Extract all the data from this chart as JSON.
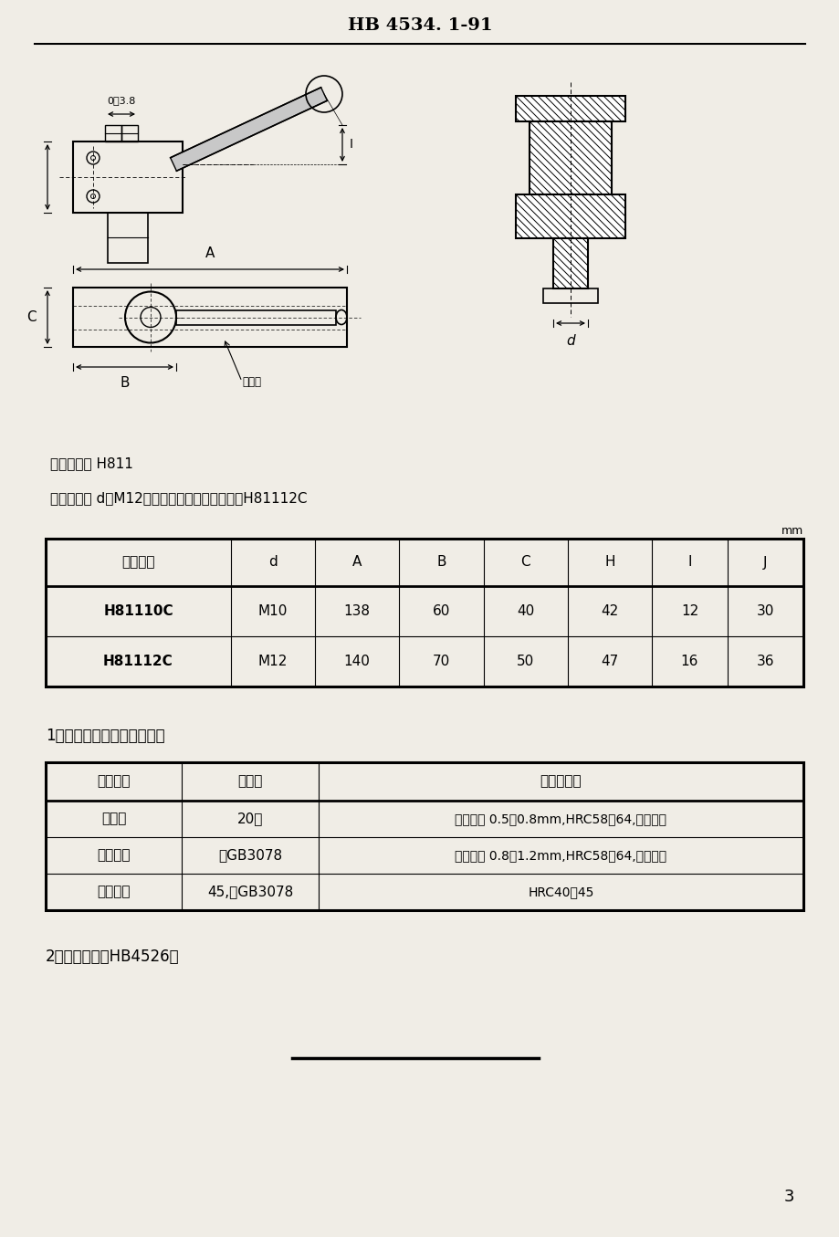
{
  "page_title": "HB 4534. 1-91",
  "bg_color": "#f0ede6",
  "classify_code": "分类代号： H811",
  "mark_example": "标记示例： d＝M12的螺旋凸轮卡紧爪的标记为H81112C",
  "mm_label": "mm",
  "table1_headers": [
    "标记代号",
    "d",
    "A",
    "B",
    "C",
    "H",
    "I",
    "J"
  ],
  "table1_rows": [
    [
      "H81110C",
      "M10",
      "138",
      "60",
      "40",
      "42",
      "12",
      "30"
    ],
    [
      "H81112C",
      "M12",
      "140",
      "70",
      "50",
      "47",
      "16",
      "36"
    ]
  ],
  "section1_title": "1　主要零件的材料及热处理",
  "table2_headers": [
    "零件名称",
    "材　料",
    "热　处　理"
  ],
  "table2_row1_col1": "底　座",
  "table2_row1_col2": "20，",
  "table2_row1_col3": "渗碳深度 0.5～0.8mm,HRC58～64,人工时效",
  "table2_row2_col1": "螺旋凸轮",
  "table2_row2_col2": "按GB3078",
  "table2_row2_col3": "渗碳深度 0.8～1.2mm,HRC58～64,人工时效",
  "table2_row3_col1": "卡　　爪",
  "table2_row3_col2": "45,按GB3078",
  "table2_row3_col3": "HRC40～45",
  "section2_text": "2　技术条件按HB4526。",
  "page_number": "3"
}
